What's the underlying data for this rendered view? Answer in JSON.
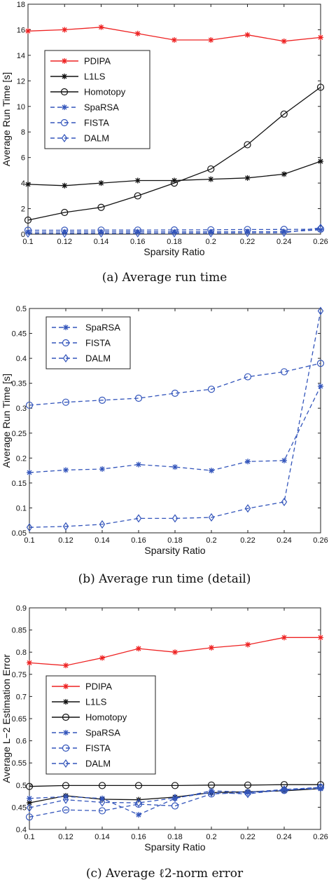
{
  "captions": {
    "a": "(a) Average run time",
    "b": "(b) Average run time (detail)",
    "c": "(c) Average ℓ2-norm error"
  },
  "colors": {
    "PDIPA": "#ee2222",
    "L1LS": "#111111",
    "Homotopy": "#111111",
    "SpaRSA": "#3355bb",
    "FISTA": "#3355bb",
    "DALM": "#3355bb"
  },
  "chart_data": [
    {
      "type": "line",
      "title": "",
      "xlabel": "Sparsity Ratio",
      "ylabel": "Average Run Time [s]",
      "x": [
        0.1,
        0.12,
        0.14,
        0.16,
        0.18,
        0.2,
        0.22,
        0.24,
        0.26
      ],
      "xticks": [
        "0.1",
        "0.12",
        "0.14",
        "0.16",
        "0.18",
        "0.2",
        "0.22",
        "0.24",
        "0.26"
      ],
      "ylim": [
        0,
        18
      ],
      "yticks": [
        "0",
        "2",
        "4",
        "6",
        "8",
        "10",
        "12",
        "14",
        "16",
        "18"
      ],
      "legend_position": "upper-left",
      "series": [
        {
          "name": "PDIPA",
          "marker": "star",
          "dash": "solid",
          "values": [
            15.9,
            16.0,
            16.2,
            15.7,
            15.2,
            15.2,
            15.6,
            15.1,
            15.4
          ]
        },
        {
          "name": "L1LS",
          "marker": "star",
          "dash": "solid",
          "values": [
            3.9,
            3.8,
            4.0,
            4.2,
            4.2,
            4.3,
            4.4,
            4.7,
            5.7
          ]
        },
        {
          "name": "Homotopy",
          "marker": "circle",
          "dash": "solid",
          "values": [
            1.1,
            1.7,
            2.1,
            3.0,
            4.0,
            5.1,
            7.0,
            9.4,
            11.5
          ]
        },
        {
          "name": "SpaRSA",
          "marker": "star",
          "dash": "dashed",
          "values": [
            0.17,
            0.18,
            0.18,
            0.19,
            0.18,
            0.18,
            0.19,
            0.19,
            0.34
          ]
        },
        {
          "name": "FISTA",
          "marker": "circle",
          "dash": "dashed",
          "values": [
            0.31,
            0.31,
            0.32,
            0.32,
            0.33,
            0.34,
            0.36,
            0.37,
            0.39
          ]
        },
        {
          "name": "DALM",
          "marker": "diamond",
          "dash": "dashed",
          "values": [
            0.06,
            0.06,
            0.07,
            0.08,
            0.08,
            0.08,
            0.1,
            0.11,
            0.5
          ]
        }
      ]
    },
    {
      "type": "line",
      "title": "",
      "xlabel": "Sparsity Ratio",
      "ylabel": "Average Run Time [s]",
      "x": [
        0.1,
        0.12,
        0.14,
        0.16,
        0.18,
        0.2,
        0.22,
        0.24,
        0.26
      ],
      "xticks": [
        "0.1",
        "0.12",
        "0.14",
        "0.16",
        "0.18",
        "0.2",
        "0.22",
        "0.24",
        "0.26"
      ],
      "ylim": [
        0.05,
        0.5
      ],
      "yticks": [
        "0.05",
        "0.1",
        "0.15",
        "0.2",
        "0.25",
        "0.3",
        "0.35",
        "0.4",
        "0.45",
        "0.5"
      ],
      "legend_position": "upper-left",
      "series": [
        {
          "name": "SpaRSA",
          "marker": "star",
          "dash": "dashed",
          "values": [
            0.171,
            0.176,
            0.178,
            0.187,
            0.182,
            0.175,
            0.193,
            0.195,
            0.344
          ]
        },
        {
          "name": "FISTA",
          "marker": "circle",
          "dash": "dashed",
          "values": [
            0.306,
            0.312,
            0.316,
            0.32,
            0.33,
            0.338,
            0.363,
            0.373,
            0.39
          ]
        },
        {
          "name": "DALM",
          "marker": "diamond",
          "dash": "dashed",
          "values": [
            0.061,
            0.063,
            0.067,
            0.079,
            0.079,
            0.081,
            0.099,
            0.112,
            0.495
          ]
        }
      ]
    },
    {
      "type": "line",
      "title": "",
      "xlabel": "Sparsity Ratio",
      "ylabel": "Average L−2 Estimation Error",
      "x": [
        0.1,
        0.12,
        0.14,
        0.16,
        0.18,
        0.2,
        0.22,
        0.24,
        0.26
      ],
      "xticks": [
        "0.1",
        "0.12",
        "0.14",
        "0.16",
        "0.18",
        "0.2",
        "0.22",
        "0.24",
        "0.26"
      ],
      "ylim": [
        0.4,
        0.9
      ],
      "yticks": [
        "0.4",
        "0.45",
        "0.5",
        "0.55",
        "0.6",
        "0.65",
        "0.7",
        "0.75",
        "0.8",
        "0.85",
        "0.9"
      ],
      "legend_position": "middle-left",
      "series": [
        {
          "name": "PDIPA",
          "marker": "star",
          "dash": "solid",
          "values": [
            0.776,
            0.77,
            0.787,
            0.808,
            0.8,
            0.81,
            0.817,
            0.833,
            0.833
          ]
        },
        {
          "name": "L1LS",
          "marker": "star",
          "dash": "solid",
          "values": [
            0.46,
            0.476,
            0.468,
            0.467,
            0.473,
            0.483,
            0.485,
            0.487,
            0.492
          ]
        },
        {
          "name": "Homotopy",
          "marker": "circle",
          "dash": "solid",
          "values": [
            0.497,
            0.499,
            0.499,
            0.499,
            0.499,
            0.5,
            0.5,
            0.501,
            0.501
          ]
        },
        {
          "name": "SpaRSA",
          "marker": "star",
          "dash": "dashed",
          "values": [
            0.47,
            0.474,
            0.47,
            0.433,
            0.47,
            0.487,
            0.484,
            0.49,
            0.492
          ]
        },
        {
          "name": "FISTA",
          "marker": "circle",
          "dash": "dashed",
          "values": [
            0.428,
            0.444,
            0.442,
            0.457,
            0.453,
            0.48,
            0.483,
            0.488,
            0.495
          ]
        },
        {
          "name": "DALM",
          "marker": "diamond",
          "dash": "dashed",
          "values": [
            0.449,
            0.467,
            0.461,
            0.46,
            0.471,
            0.483,
            0.48,
            0.49,
            0.495
          ]
        }
      ]
    }
  ]
}
